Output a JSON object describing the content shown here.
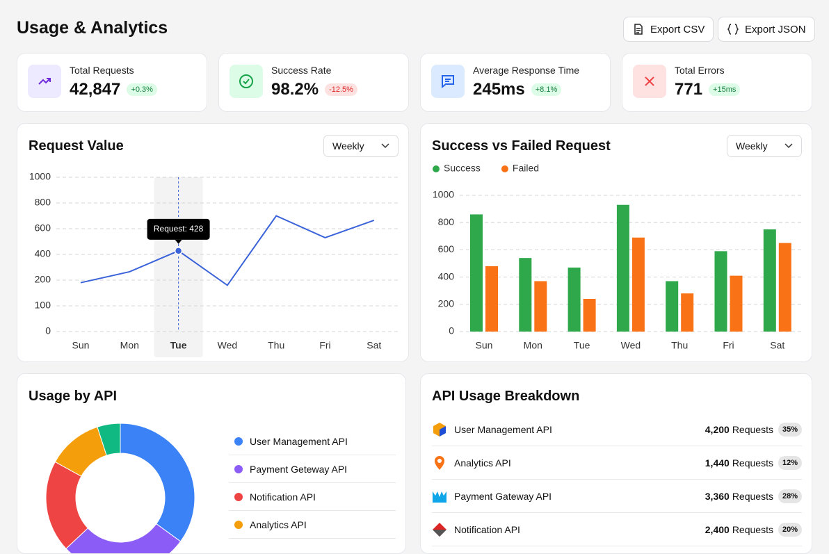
{
  "header": {
    "title": "Usage & Analytics",
    "buttons": [
      "Export CSV",
      "Export JSON"
    ]
  },
  "stats": [
    {
      "label": "Total Requests",
      "value": "42,847",
      "change": "+0.3%"
    },
    {
      "label": "Success Rate",
      "value": "98.2%",
      "change": "-12.5%"
    },
    {
      "label": "Average Response Time",
      "value": "245ms",
      "change": "+8.1%"
    },
    {
      "label": "Total Errors",
      "value": "771",
      "change": "+15ms"
    }
  ],
  "chart_data": [
    {
      "type": "line",
      "title": "Request Value",
      "filter": "Weekly",
      "categories": [
        "Sun",
        "Mon",
        "Tue",
        "Wed",
        "Thu",
        "Fri",
        "Sat"
      ],
      "values": [
        190,
        265,
        428,
        180,
        700,
        530,
        665
      ],
      "color": "#3b63d9",
      "ylim": [
        0,
        1000
      ],
      "yticks": [
        0,
        100,
        200,
        400,
        600,
        800,
        1000
      ],
      "grid": true,
      "tooltip": "Request: 428"
    },
    {
      "type": "bar",
      "title": "Success vs Failed Request",
      "filter": "Weekly",
      "categories": [
        "Sun",
        "Mon",
        "Tue",
        "Wed",
        "Thu",
        "Fri",
        "Sat"
      ],
      "series": [
        {
          "name": "Success",
          "color": "#2ea84a",
          "values": [
            860,
            540,
            470,
            930,
            370,
            590,
            750
          ]
        },
        {
          "name": "Failed",
          "color": "#f97316",
          "values": [
            480,
            370,
            240,
            690,
            280,
            410,
            650
          ]
        }
      ],
      "ylim": [
        0,
        1000
      ],
      "yticks": [
        0,
        200,
        400,
        600,
        800,
        1000
      ],
      "grid": true,
      "legend": "top-left"
    },
    {
      "type": "pie",
      "title": "Usage by API",
      "categories": [
        "User Management API",
        "Payment Geteway API",
        "Notification API",
        "Analytics API",
        null
      ],
      "values": [
        35,
        28,
        20,
        12,
        5
      ],
      "colors": [
        "#3b82f6",
        "#8b5cf6",
        "#ef4444",
        "#f59e0b",
        "#10b981"
      ]
    }
  ],
  "breakdown": {
    "title": "API Usage Breakdown",
    "rows": [
      {
        "name": "User Management API",
        "count": "4,200",
        "unit": "Requests",
        "share": "35%"
      },
      {
        "name": "Analytics API",
        "count": "1,440",
        "unit": "Requests",
        "share": "12%"
      },
      {
        "name": "Payment Gateway API",
        "count": "3,360",
        "unit": "Requests",
        "share": "28%"
      },
      {
        "name": "Notification API",
        "count": "2,400",
        "unit": "Requests",
        "share": "20%"
      }
    ]
  }
}
